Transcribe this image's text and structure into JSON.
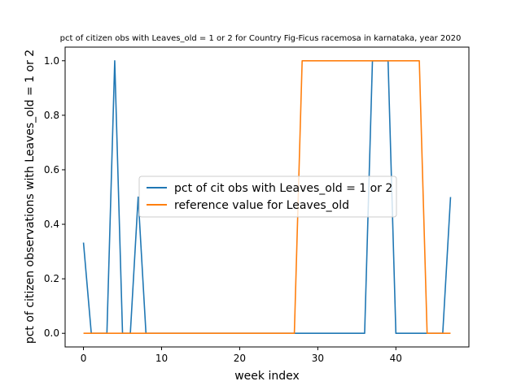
{
  "chart_data": {
    "type": "line",
    "title": "pct of citizen obs with Leaves_old = 1 or 2 for Country Fig-Ficus racemosa in karnataka, year 2020",
    "xlabel": "week index",
    "ylabel": "pct of citizen observations with Leaves_old = 1 or 2",
    "xlim": [
      -2.35,
      49.35
    ],
    "ylim": [
      -0.05,
      1.05
    ],
    "xticks": [
      0,
      10,
      20,
      30,
      40
    ],
    "yticks": [
      0.0,
      0.2,
      0.4,
      0.6,
      0.8,
      1.0
    ],
    "xtick_labels": [
      "0",
      "10",
      "20",
      "30",
      "40"
    ],
    "ytick_labels": [
      "0.0",
      "0.2",
      "0.4",
      "0.6",
      "0.8",
      "1.0"
    ],
    "grid": false,
    "legend_position": "center",
    "x": [
      0,
      1,
      2,
      3,
      4,
      5,
      6,
      7,
      8,
      9,
      10,
      11,
      12,
      13,
      14,
      15,
      16,
      17,
      18,
      19,
      20,
      21,
      22,
      23,
      24,
      25,
      26,
      27,
      28,
      29,
      30,
      31,
      32,
      33,
      34,
      35,
      36,
      37,
      38,
      39,
      40,
      41,
      42,
      43,
      44,
      45,
      46,
      47
    ],
    "series": [
      {
        "name": "pct of cit obs with Leaves_old = 1 or 2",
        "color": "#1f77b4",
        "values": [
          0.333,
          0,
          0,
          0,
          1,
          0,
          0,
          0.5,
          0,
          0,
          0,
          0,
          0,
          0,
          0,
          0,
          0,
          0,
          0,
          0,
          0,
          0,
          0,
          0,
          0,
          0,
          0,
          0,
          0,
          0,
          0,
          0,
          0,
          0,
          0,
          0,
          0,
          1,
          1,
          1,
          0,
          0,
          0,
          0,
          0,
          0,
          0,
          0.5
        ]
      },
      {
        "name": "reference value for Leaves_old",
        "color": "#ff7f0e",
        "values": [
          0,
          0,
          0,
          0,
          0,
          0,
          0,
          0,
          0,
          0,
          0,
          0,
          0,
          0,
          0,
          0,
          0,
          0,
          0,
          0,
          0,
          0,
          0,
          0,
          0,
          0,
          0,
          0,
          1,
          1,
          1,
          1,
          1,
          1,
          1,
          1,
          1,
          1,
          1,
          1,
          1,
          1,
          1,
          1,
          0,
          0,
          0,
          0
        ]
      }
    ]
  }
}
